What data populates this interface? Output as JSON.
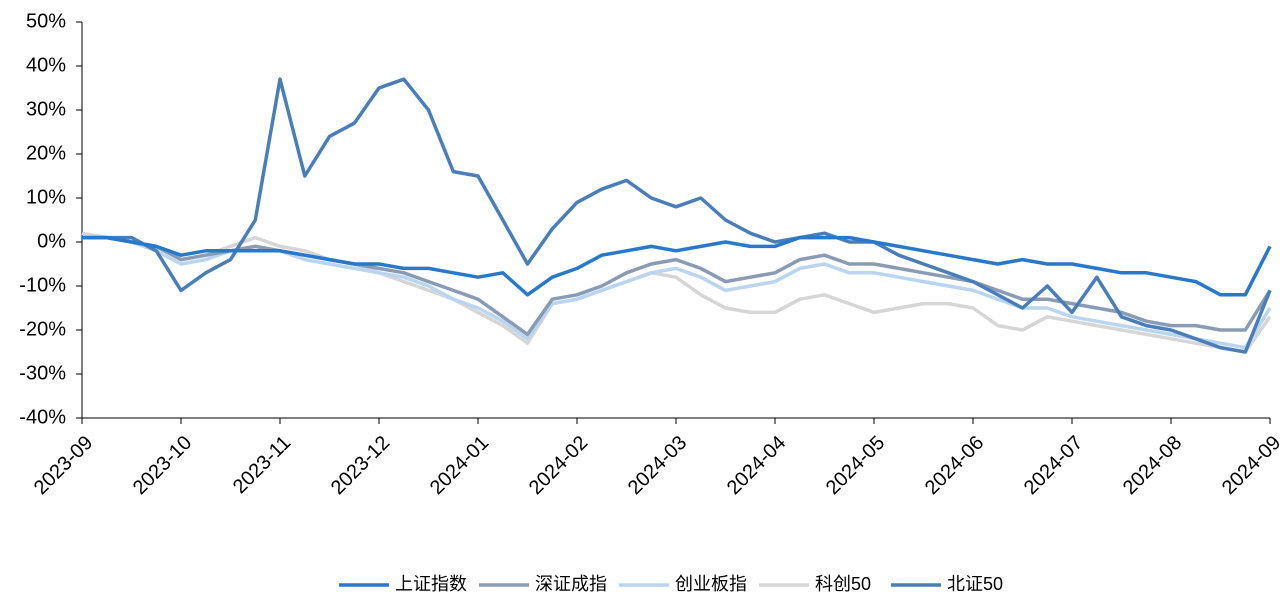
{
  "chart_data": {
    "type": "line",
    "categories": [
      "2023-09",
      null,
      null,
      null,
      "2023-10",
      null,
      null,
      null,
      "2023-11",
      null,
      null,
      null,
      "2023-12",
      null,
      null,
      null,
      "2024-01",
      null,
      null,
      null,
      "2024-02",
      null,
      null,
      null,
      "2024-03",
      null,
      null,
      null,
      "2024-04",
      null,
      null,
      null,
      "2024-05",
      null,
      null,
      null,
      "2024-06",
      null,
      null,
      null,
      "2024-07",
      null,
      null,
      null,
      "2024-08",
      null,
      null,
      null,
      "2024-09"
    ],
    "series": [
      {
        "name": "上证指数",
        "color": "#2878cc",
        "values": [
          1,
          1,
          0,
          -1,
          -3,
          -2,
          -2,
          -2,
          -2,
          -3,
          -4,
          -5,
          -5,
          -6,
          -6,
          -7,
          -8,
          -7,
          -12,
          -8,
          -6,
          -3,
          -2,
          -1,
          -2,
          -1,
          0,
          -1,
          -1,
          1,
          1,
          1,
          0,
          -1,
          -2,
          -3,
          -4,
          -5,
          -4,
          -5,
          -5,
          -6,
          -7,
          -7,
          -8,
          -9,
          -12,
          -12,
          -1
        ]
      },
      {
        "name": "深证成指",
        "color": "#8a9bb5",
        "values": [
          1,
          1,
          0,
          -1,
          -4,
          -3,
          -2,
          -1,
          -2,
          -3,
          -4,
          -5,
          -6,
          -7,
          -9,
          -11,
          -13,
          -17,
          -21,
          -13,
          -12,
          -10,
          -7,
          -5,
          -4,
          -6,
          -9,
          -8,
          -7,
          -4,
          -3,
          -5,
          -5,
          -6,
          -7,
          -8,
          -9,
          -11,
          -13,
          -13,
          -14,
          -15,
          -16,
          -18,
          -19,
          -19,
          -20,
          -20,
          -11
        ]
      },
      {
        "name": "创业板指",
        "color": "#b9d5f0",
        "values": [
          1,
          1,
          0,
          -2,
          -5,
          -4,
          -2,
          -1,
          -2,
          -4,
          -5,
          -6,
          -7,
          -8,
          -10,
          -13,
          -15,
          -18,
          -22,
          -14,
          -13,
          -11,
          -9,
          -7,
          -6,
          -8,
          -11,
          -10,
          -9,
          -6,
          -5,
          -7,
          -7,
          -8,
          -9,
          -10,
          -11,
          -13,
          -15,
          -15,
          -17,
          -18,
          -19,
          -20,
          -21,
          -22,
          -23,
          -24,
          -15
        ]
      },
      {
        "name": "科创50",
        "color": "#d6d6d6",
        "values": [
          2,
          1,
          0,
          -1,
          -4,
          -3,
          -1,
          1,
          -1,
          -2,
          -4,
          -5,
          -7,
          -9,
          -11,
          -13,
          -16,
          -19,
          -23,
          -14,
          -13,
          -11,
          -9,
          -7,
          -8,
          -12,
          -15,
          -16,
          -16,
          -13,
          -12,
          -14,
          -16,
          -15,
          -14,
          -14,
          -15,
          -19,
          -20,
          -17,
          -18,
          -19,
          -20,
          -21,
          -22,
          -23,
          -24,
          -25,
          -17
        ]
      },
      {
        "name": "北证50",
        "color": "#4a7ebb",
        "values": [
          1,
          1,
          1,
          -2,
          -11,
          -7,
          -4,
          5,
          37,
          15,
          24,
          27,
          35,
          37,
          30,
          16,
          15,
          5,
          -5,
          3,
          9,
          12,
          14,
          10,
          8,
          10,
          5,
          2,
          0,
          1,
          2,
          0,
          0,
          -3,
          -5,
          -7,
          -9,
          -12,
          -15,
          -10,
          -16,
          -8,
          -17,
          -19,
          -20,
          -22,
          -24,
          -25,
          -11
        ]
      }
    ],
    "ylim": [
      -40,
      50
    ],
    "yticks": [
      {
        "value": -40,
        "label": "-40%"
      },
      {
        "value": -30,
        "label": "-30%"
      },
      {
        "value": -20,
        "label": "-20%"
      },
      {
        "value": -10,
        "label": "-10%"
      },
      {
        "value": 0,
        "label": "0%"
      },
      {
        "value": 10,
        "label": "10%"
      },
      {
        "value": 20,
        "label": "20%"
      },
      {
        "value": 30,
        "label": "30%"
      },
      {
        "value": 40,
        "label": "40%"
      },
      {
        "value": 50,
        "label": "50%"
      }
    ],
    "legend": "bottom"
  }
}
